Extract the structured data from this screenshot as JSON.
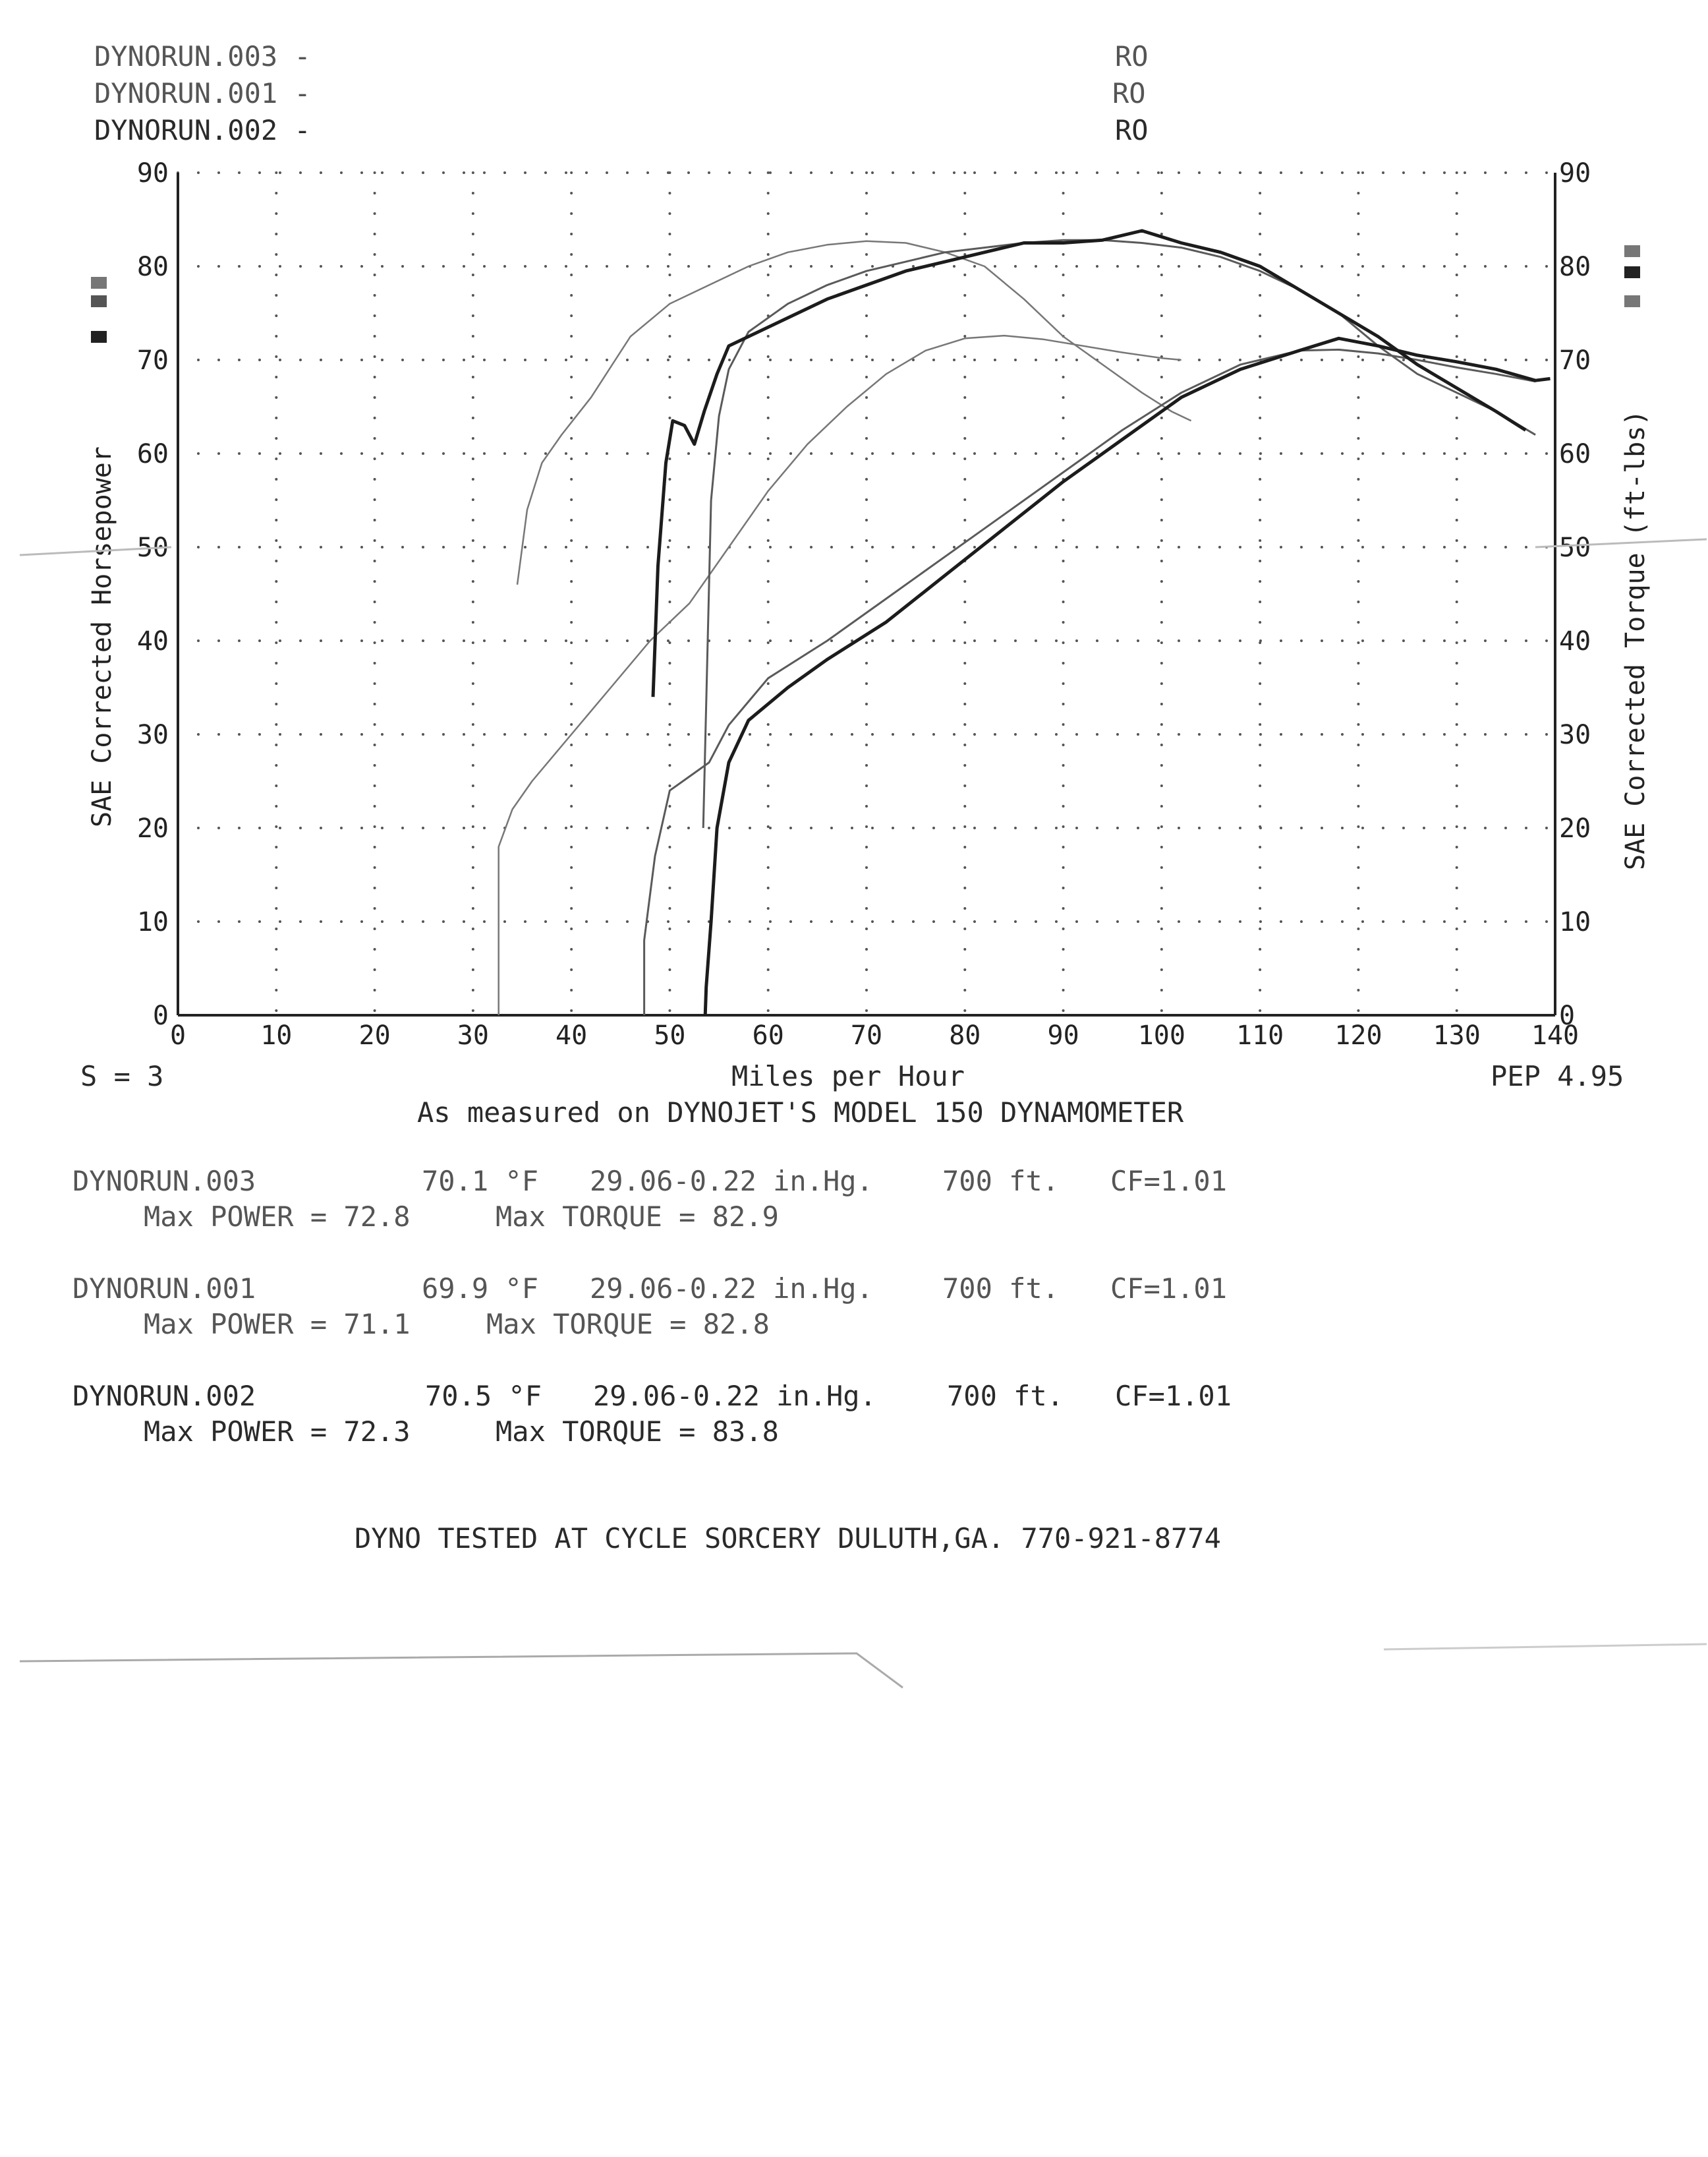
{
  "header": {
    "runs": [
      {
        "name": "DYNORUN.003 -",
        "tag": "RO"
      },
      {
        "name": "DYNORUN.001 -",
        "tag": "RO"
      },
      {
        "name": "DYNORUN.002 -",
        "tag": "RO"
      }
    ]
  },
  "chart_data": {
    "type": "line",
    "title": "",
    "xlabel": "Miles per Hour",
    "ylabel": "SAE Corrected Horsepower",
    "y2label": "SAE Corrected Torque (ft-lbs)",
    "xlim": [
      0,
      140
    ],
    "ylim": [
      0,
      90
    ],
    "y2lim": [
      0,
      90
    ],
    "x_ticks": [
      "0",
      "10",
      "20",
      "30",
      "40",
      "50",
      "60",
      "70",
      "80",
      "90",
      "100",
      "110",
      "120",
      "130",
      "140"
    ],
    "y_ticks": [
      "0",
      "10",
      "20",
      "30",
      "40",
      "50",
      "60",
      "70",
      "80",
      "90"
    ],
    "grid": true,
    "colors": {
      "run003": "#8a8a8a",
      "run001": "#5a5a5a",
      "run002": "#1c1c1c"
    },
    "series": [
      {
        "name": "DYNORUN.003",
        "metric": "horsepower",
        "style": "faint",
        "points": [
          [
            32.6,
            0
          ],
          [
            32.6,
            18
          ],
          [
            34,
            22
          ],
          [
            36,
            25
          ],
          [
            40,
            30
          ],
          [
            44,
            35
          ],
          [
            48,
            40
          ],
          [
            52,
            44
          ],
          [
            56,
            50
          ],
          [
            60,
            56
          ],
          [
            64,
            61
          ],
          [
            68,
            65
          ],
          [
            72,
            68.5
          ],
          [
            76,
            71
          ],
          [
            80,
            72.3
          ],
          [
            84,
            72.6
          ],
          [
            88,
            72.2
          ],
          [
            92,
            71.5
          ],
          [
            96,
            70.8
          ],
          [
            100,
            70.2
          ],
          [
            102,
            70.0
          ]
        ]
      },
      {
        "name": "DYNORUN.003",
        "metric": "torque",
        "style": "faint",
        "points": [
          [
            34.5,
            46
          ],
          [
            35.5,
            54
          ],
          [
            37,
            59
          ],
          [
            39,
            62
          ],
          [
            42,
            66
          ],
          [
            46,
            72.5
          ],
          [
            50,
            76
          ],
          [
            54,
            78
          ],
          [
            58,
            80
          ],
          [
            62,
            81.5
          ],
          [
            66,
            82.3
          ],
          [
            70,
            82.7
          ],
          [
            74,
            82.5
          ],
          [
            78,
            81.5
          ],
          [
            82,
            80
          ],
          [
            86,
            76.5
          ],
          [
            90,
            72.5
          ],
          [
            94,
            69.5
          ],
          [
            98,
            66.5
          ],
          [
            101,
            64.5
          ],
          [
            103,
            63.5
          ]
        ]
      },
      {
        "name": "DYNORUN.001",
        "metric": "horsepower",
        "style": "mid",
        "points": [
          [
            47.4,
            0
          ],
          [
            47.4,
            8
          ],
          [
            48.5,
            17
          ],
          [
            50,
            24
          ],
          [
            52,
            25.5
          ],
          [
            54,
            27
          ],
          [
            56,
            31
          ],
          [
            60,
            36
          ],
          [
            66,
            40
          ],
          [
            72,
            44.5
          ],
          [
            78,
            49
          ],
          [
            84,
            53.5
          ],
          [
            90,
            58
          ],
          [
            96,
            62.5
          ],
          [
            102,
            66.5
          ],
          [
            108,
            69.5
          ],
          [
            114,
            71
          ],
          [
            118,
            71.1
          ],
          [
            122,
            70.7
          ],
          [
            126,
            70
          ],
          [
            130,
            69.2
          ],
          [
            134,
            68.5
          ],
          [
            138,
            67.7
          ]
        ]
      },
      {
        "name": "DYNORUN.001",
        "metric": "torque",
        "style": "mid",
        "points": [
          [
            53.4,
            20
          ],
          [
            54.2,
            55
          ],
          [
            55,
            64
          ],
          [
            56,
            69
          ],
          [
            58,
            73
          ],
          [
            62,
            76
          ],
          [
            66,
            78
          ],
          [
            70,
            79.5
          ],
          [
            74,
            80.5
          ],
          [
            78,
            81.5
          ],
          [
            82,
            82
          ],
          [
            86,
            82.5
          ],
          [
            90,
            82.8
          ],
          [
            94,
            82.8
          ],
          [
            98,
            82.5
          ],
          [
            102,
            82
          ],
          [
            106,
            81
          ],
          [
            110,
            79.5
          ],
          [
            114,
            77.5
          ],
          [
            118,
            75
          ],
          [
            122,
            71.5
          ],
          [
            126,
            68.5
          ],
          [
            130,
            66.5
          ],
          [
            134,
            64.5
          ],
          [
            138,
            62
          ]
        ]
      },
      {
        "name": "DYNORUN.002",
        "metric": "horsepower",
        "style": "dark",
        "points": [
          [
            53.6,
            0
          ],
          [
            53.7,
            3
          ],
          [
            54.2,
            10
          ],
          [
            54.8,
            20
          ],
          [
            56,
            27
          ],
          [
            58,
            31.5
          ],
          [
            62,
            35
          ],
          [
            66,
            38
          ],
          [
            72,
            42
          ],
          [
            78,
            47
          ],
          [
            84,
            52
          ],
          [
            90,
            57
          ],
          [
            96,
            61.5
          ],
          [
            102,
            66
          ],
          [
            108,
            69
          ],
          [
            114,
            71
          ],
          [
            118,
            72.3
          ],
          [
            122,
            71.5
          ],
          [
            126,
            70.5
          ],
          [
            130,
            69.8
          ],
          [
            134,
            69
          ],
          [
            138,
            67.8
          ],
          [
            139.5,
            68
          ]
        ]
      },
      {
        "name": "DYNORUN.002",
        "metric": "torque",
        "style": "dark",
        "points": [
          [
            48.3,
            34
          ],
          [
            48.8,
            48
          ],
          [
            49.6,
            59
          ],
          [
            50.3,
            63.5
          ],
          [
            51.5,
            63
          ],
          [
            52.5,
            61
          ],
          [
            53.5,
            64.5
          ],
          [
            54.8,
            68.5
          ],
          [
            56,
            71.5
          ],
          [
            58,
            72.5
          ],
          [
            62,
            74.5
          ],
          [
            66,
            76.5
          ],
          [
            70,
            78
          ],
          [
            74,
            79.5
          ],
          [
            78,
            80.5
          ],
          [
            82,
            81.5
          ],
          [
            86,
            82.5
          ],
          [
            90,
            82.5
          ],
          [
            94,
            82.8
          ],
          [
            98,
            83.8
          ],
          [
            102,
            82.5
          ],
          [
            106,
            81.5
          ],
          [
            110,
            80
          ],
          [
            114,
            77.5
          ],
          [
            118,
            75
          ],
          [
            122,
            72.5
          ],
          [
            126,
            69.5
          ],
          [
            130,
            67
          ],
          [
            134,
            64.5
          ],
          [
            137,
            62.5
          ]
        ]
      }
    ]
  },
  "footer": {
    "smoothing": "S = 3",
    "xlabel": "Miles per Hour",
    "version": "PEP 4.95",
    "measured": "As measured on DYNOJET'S MODEL 150 DYNAMOMETER"
  },
  "results": [
    {
      "run": "DYNORUN.003",
      "temp": "70.1 °F",
      "baro": "29.06-0.22 in.Hg.",
      "alt": "700 ft.",
      "cf": "CF=1.01",
      "power": "Max POWER = 72.8",
      "torque": "Max TORQUE = 82.9"
    },
    {
      "run": "DYNORUN.001",
      "temp": "69.9 °F",
      "baro": "29.06-0.22 in.Hg.",
      "alt": "700 ft.",
      "cf": "CF=1.01",
      "power": "Max POWER = 71.1",
      "torque": "Max TORQUE = 82.8"
    },
    {
      "run": "DYNORUN.002",
      "temp": "70.5 °F",
      "baro": "29.06-0.22 in.Hg.",
      "alt": "700 ft.",
      "cf": "CF=1.01",
      "power": "Max POWER = 72.3",
      "torque": "Max TORQUE = 83.8"
    }
  ],
  "shop": "DYNO TESTED AT CYCLE SORCERY DULUTH,GA. 770-921-8774"
}
